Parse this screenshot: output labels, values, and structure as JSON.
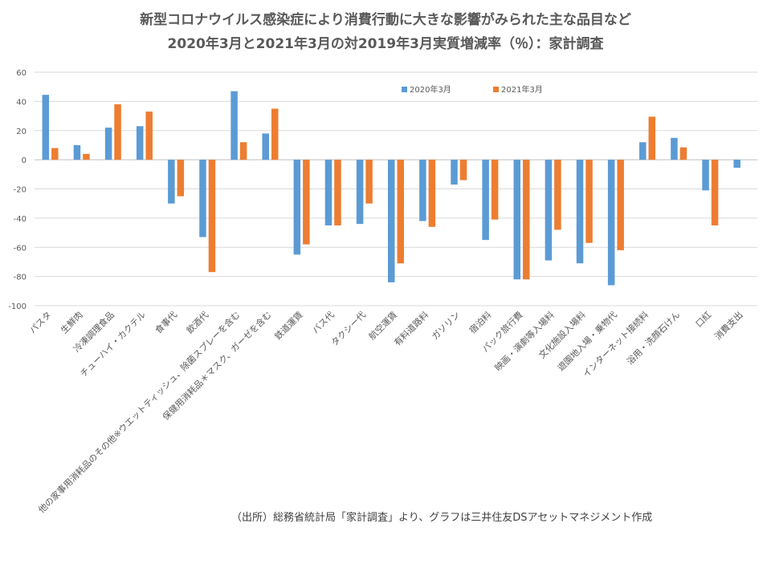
{
  "chart_data": {
    "type": "bar",
    "title": "新型コロナウイルス感染症により消費行動に大きな影響がみられた主な品目など",
    "subtitle": "2020年3月と2021年3月の対2019年3月実質増減率（％）：家計調査",
    "xlabel": "",
    "ylabel": "",
    "ylim": [
      -100,
      60
    ],
    "yticks": [
      60,
      40,
      20,
      0,
      -20,
      -40,
      -60,
      -80,
      -100
    ],
    "grid": true,
    "legend_position": "top-center",
    "categories": [
      "パスタ",
      "生鮮肉",
      "冷凍調理食品",
      "チューハイ・カクテル",
      "食事代",
      "飲酒代",
      "他の家事用消耗品のその他※ウエットティッシュ、除菌スプレーを含む",
      "保健用消耗品＊マスク、ガーゼを含む",
      "鉄道運賃",
      "バス代",
      "タクシー代",
      "航空運賃",
      "有料道路料",
      "ガソリン",
      "宿泊料",
      "パック旅行費",
      "映画・演劇等入場料",
      "文化施設入場料",
      "遊園地入場・乗物代",
      "インターネット接続料",
      "浴用・洗顔石けん",
      "口紅",
      "消費支出"
    ],
    "series": [
      {
        "name": "2020年3月",
        "color": "#5B9BD5",
        "values": [
          44.5,
          10,
          22,
          23,
          -30,
          -53,
          47,
          18,
          -65,
          -45,
          -44,
          -84,
          -42,
          -17,
          -55,
          -82,
          -69,
          -71,
          -86,
          12,
          15,
          -21,
          -5.5
        ]
      },
      {
        "name": "2021年3月",
        "color": "#ED7D31",
        "values": [
          8,
          4,
          38,
          33,
          -25,
          -77,
          12,
          35,
          -58,
          -45,
          -30,
          -71,
          -46,
          -14,
          -41,
          -82,
          -48,
          -57,
          -62,
          29.5,
          8.5,
          -45,
          null
        ]
      }
    ]
  },
  "source": "（出所）総務省統計局「家計調査」より、グラフは三井住友DSアセットマネジメント作成"
}
